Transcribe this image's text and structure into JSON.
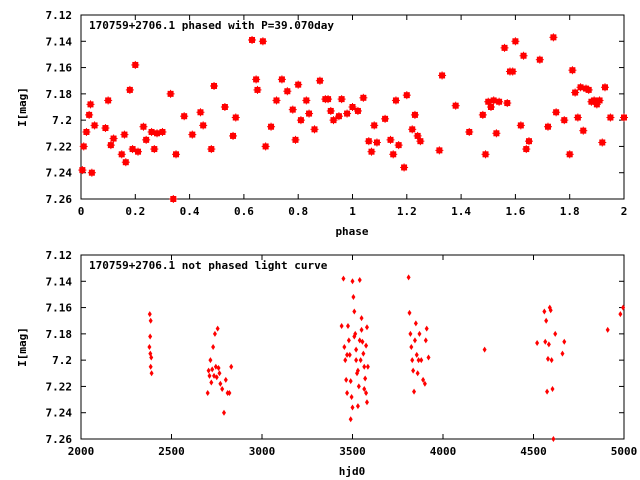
{
  "colors": {
    "marker": "#ff0000",
    "axis": "#000000",
    "background": "#ffffff"
  },
  "chart_data": [
    {
      "type": "scatter",
      "title": "170759+2706.1 phased with P=39.070day",
      "xlabel": "phase",
      "ylabel": "I[mag]",
      "xlim": [
        0,
        2
      ],
      "ylim": [
        7.26,
        7.12
      ],
      "y_inverted": true,
      "grid": false,
      "legend": "none",
      "xticks": [
        "0",
        "0.2",
        "0.4",
        "0.6",
        "0.8",
        "1",
        "1.2",
        "1.4",
        "1.6",
        "1.8",
        "2"
      ],
      "yticks": [
        "7.12",
        "7.14",
        "7.16",
        "7.18",
        "7.2",
        "7.22",
        "7.24",
        "7.26"
      ],
      "marker": "square",
      "points": [
        [
          0.005,
          7.238
        ],
        [
          0.01,
          7.22
        ],
        [
          0.02,
          7.209
        ],
        [
          0.03,
          7.196
        ],
        [
          0.035,
          7.188
        ],
        [
          0.04,
          7.24
        ],
        [
          0.05,
          7.204
        ],
        [
          0.09,
          7.206
        ],
        [
          0.1,
          7.185
        ],
        [
          0.11,
          7.219
        ],
        [
          0.12,
          7.214
        ],
        [
          0.15,
          7.226
        ],
        [
          0.16,
          7.211
        ],
        [
          0.165,
          7.232
        ],
        [
          0.18,
          7.177
        ],
        [
          0.19,
          7.222
        ],
        [
          0.2,
          7.158
        ],
        [
          0.21,
          7.224
        ],
        [
          0.23,
          7.205
        ],
        [
          0.24,
          7.215
        ],
        [
          0.26,
          7.209
        ],
        [
          0.27,
          7.222
        ],
        [
          0.28,
          7.21
        ],
        [
          0.3,
          7.209
        ],
        [
          0.33,
          7.18
        ],
        [
          0.34,
          7.26
        ],
        [
          0.35,
          7.226
        ],
        [
          0.38,
          7.197
        ],
        [
          0.41,
          7.211
        ],
        [
          0.44,
          7.194
        ],
        [
          0.45,
          7.204
        ],
        [
          0.48,
          7.222
        ],
        [
          0.49,
          7.174
        ],
        [
          0.53,
          7.19
        ],
        [
          0.56,
          7.212
        ],
        [
          0.57,
          7.198
        ],
        [
          0.63,
          7.139
        ],
        [
          0.645,
          7.169
        ],
        [
          0.65,
          7.177
        ],
        [
          0.67,
          7.14
        ],
        [
          0.68,
          7.22
        ],
        [
          0.7,
          7.205
        ],
        [
          0.72,
          7.185
        ],
        [
          0.74,
          7.169
        ],
        [
          0.76,
          7.178
        ],
        [
          0.78,
          7.192
        ],
        [
          0.79,
          7.215
        ],
        [
          0.8,
          7.173
        ],
        [
          0.81,
          7.2
        ],
        [
          0.83,
          7.185
        ],
        [
          0.84,
          7.195
        ],
        [
          0.86,
          7.207
        ],
        [
          0.88,
          7.17
        ],
        [
          0.9,
          7.184
        ],
        [
          0.91,
          7.184
        ],
        [
          0.92,
          7.193
        ],
        [
          0.93,
          7.2
        ],
        [
          0.95,
          7.197
        ],
        [
          0.96,
          7.184
        ],
        [
          0.98,
          7.195
        ],
        [
          1.0,
          7.19
        ],
        [
          1.02,
          7.193
        ],
        [
          1.04,
          7.183
        ],
        [
          1.06,
          7.216
        ],
        [
          1.07,
          7.224
        ],
        [
          1.08,
          7.204
        ],
        [
          1.09,
          7.217
        ],
        [
          1.12,
          7.199
        ],
        [
          1.14,
          7.215
        ],
        [
          1.15,
          7.226
        ],
        [
          1.16,
          7.185
        ],
        [
          1.17,
          7.219
        ],
        [
          1.19,
          7.236
        ],
        [
          1.2,
          7.181
        ],
        [
          1.22,
          7.207
        ],
        [
          1.23,
          7.196
        ],
        [
          1.24,
          7.212
        ],
        [
          1.25,
          7.216
        ],
        [
          1.32,
          7.223
        ],
        [
          1.33,
          7.166
        ],
        [
          1.38,
          7.189
        ],
        [
          1.43,
          7.209
        ],
        [
          1.48,
          7.196
        ],
        [
          1.49,
          7.226
        ],
        [
          1.5,
          7.186
        ],
        [
          1.51,
          7.19
        ],
        [
          1.52,
          7.185
        ],
        [
          1.53,
          7.21
        ],
        [
          1.54,
          7.186
        ],
        [
          1.56,
          7.145
        ],
        [
          1.57,
          7.187
        ],
        [
          1.58,
          7.163
        ],
        [
          1.59,
          7.163
        ],
        [
          1.6,
          7.14
        ],
        [
          1.62,
          7.204
        ],
        [
          1.63,
          7.151
        ],
        [
          1.64,
          7.222
        ],
        [
          1.65,
          7.216
        ],
        [
          1.69,
          7.154
        ],
        [
          1.72,
          7.205
        ],
        [
          1.74,
          7.137
        ],
        [
          1.75,
          7.194
        ],
        [
          1.78,
          7.2
        ],
        [
          1.8,
          7.226
        ],
        [
          1.81,
          7.162
        ],
        [
          1.82,
          7.179
        ],
        [
          1.83,
          7.198
        ],
        [
          1.84,
          7.175
        ],
        [
          1.85,
          7.208
        ],
        [
          1.86,
          7.176
        ],
        [
          1.87,
          7.177
        ],
        [
          1.88,
          7.186
        ],
        [
          1.89,
          7.185
        ],
        [
          1.9,
          7.188
        ],
        [
          1.91,
          7.185
        ],
        [
          1.92,
          7.217
        ],
        [
          1.93,
          7.175
        ],
        [
          1.95,
          7.198
        ],
        [
          2.0,
          7.198
        ]
      ]
    },
    {
      "type": "scatter",
      "title": "170759+2706.1 not phased light curve",
      "xlabel": "hjd0",
      "ylabel": "I[mag]",
      "xlim": [
        2000,
        5000
      ],
      "ylim": [
        7.26,
        7.12
      ],
      "y_inverted": true,
      "grid": false,
      "legend": "none",
      "xticks": [
        "2000",
        "2500",
        "3000",
        "3500",
        "4000",
        "4500",
        "5000"
      ],
      "yticks": [
        "7.12",
        "7.14",
        "7.16",
        "7.18",
        "7.2",
        "7.22",
        "7.24",
        "7.26"
      ],
      "marker": "diamond",
      "points": [
        [
          2380,
          7.165
        ],
        [
          2385,
          7.17
        ],
        [
          2382,
          7.182
        ],
        [
          2378,
          7.19
        ],
        [
          2383,
          7.195
        ],
        [
          2388,
          7.198
        ],
        [
          2385,
          7.205
        ],
        [
          2390,
          7.21
        ],
        [
          2700,
          7.225
        ],
        [
          2705,
          7.208
        ],
        [
          2710,
          7.212
        ],
        [
          2715,
          7.2
        ],
        [
          2720,
          7.217
        ],
        [
          2725,
          7.207
        ],
        [
          2730,
          7.19
        ],
        [
          2735,
          7.212
        ],
        [
          2740,
          7.18
        ],
        [
          2745,
          7.205
        ],
        [
          2750,
          7.213
        ],
        [
          2755,
          7.176
        ],
        [
          2760,
          7.206
        ],
        [
          2765,
          7.21
        ],
        [
          2770,
          7.218
        ],
        [
          2780,
          7.222
        ],
        [
          2790,
          7.24
        ],
        [
          2800,
          7.215
        ],
        [
          2810,
          7.225
        ],
        [
          2820,
          7.225
        ],
        [
          2830,
          7.205
        ],
        [
          3440,
          7.174
        ],
        [
          3450,
          7.138
        ],
        [
          3455,
          7.19
        ],
        [
          3460,
          7.2
        ],
        [
          3465,
          7.215
        ],
        [
          3470,
          7.225
        ],
        [
          3475,
          7.174
        ],
        [
          3480,
          7.185
        ],
        [
          3485,
          7.196
        ],
        [
          3490,
          7.216
        ],
        [
          3495,
          7.228
        ],
        [
          3500,
          7.14
        ],
        [
          3505,
          7.152
        ],
        [
          3510,
          7.163
        ],
        [
          3515,
          7.18
        ],
        [
          3520,
          7.2
        ],
        [
          3525,
          7.21
        ],
        [
          3530,
          7.235
        ],
        [
          3535,
          7.22
        ],
        [
          3540,
          7.185
        ],
        [
          3545,
          7.2
        ],
        [
          3550,
          7.177
        ],
        [
          3555,
          7.186
        ],
        [
          3560,
          7.195
        ],
        [
          3565,
          7.205
        ],
        [
          3570,
          7.214
        ],
        [
          3575,
          7.225
        ],
        [
          3580,
          7.232
        ],
        [
          3585,
          7.205
        ],
        [
          3470,
          7.196
        ],
        [
          3490,
          7.245
        ],
        [
          3500,
          7.236
        ],
        [
          3510,
          7.182
        ],
        [
          3520,
          7.192
        ],
        [
          3530,
          7.208
        ],
        [
          3540,
          7.139
        ],
        [
          3550,
          7.168
        ],
        [
          3565,
          7.222
        ],
        [
          3575,
          7.189
        ],
        [
          3580,
          7.175
        ],
        [
          3810,
          7.137
        ],
        [
          3815,
          7.164
        ],
        [
          3820,
          7.18
        ],
        [
          3825,
          7.19
        ],
        [
          3830,
          7.2
        ],
        [
          3835,
          7.208
        ],
        [
          3840,
          7.224
        ],
        [
          3845,
          7.185
        ],
        [
          3850,
          7.172
        ],
        [
          3855,
          7.196
        ],
        [
          3860,
          7.21
        ],
        [
          3865,
          7.2
        ],
        [
          3870,
          7.18
        ],
        [
          3880,
          7.2
        ],
        [
          3890,
          7.215
        ],
        [
          3900,
          7.218
        ],
        [
          3905,
          7.185
        ],
        [
          3910,
          7.176
        ],
        [
          3920,
          7.198
        ],
        [
          4230,
          7.192
        ],
        [
          4520,
          7.187
        ],
        [
          4560,
          7.163
        ],
        [
          4565,
          7.186
        ],
        [
          4570,
          7.17
        ],
        [
          4575,
          7.224
        ],
        [
          4580,
          7.199
        ],
        [
          4585,
          7.188
        ],
        [
          4590,
          7.16
        ],
        [
          4595,
          7.162
        ],
        [
          4600,
          7.2
        ],
        [
          4605,
          7.222
        ],
        [
          4610,
          7.26
        ],
        [
          4620,
          7.18
        ],
        [
          4660,
          7.195
        ],
        [
          4670,
          7.186
        ],
        [
          4910,
          7.177
        ],
        [
          4980,
          7.165
        ],
        [
          4995,
          7.16
        ]
      ]
    }
  ]
}
